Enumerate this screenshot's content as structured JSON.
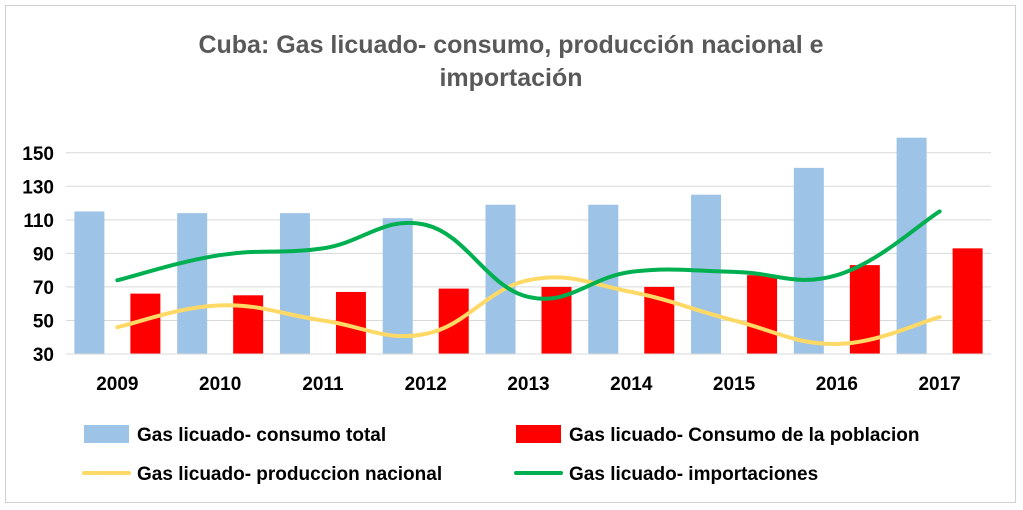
{
  "chart_data": {
    "type": "bar",
    "title_lines": [
      "Cuba: Gas licuado- consumo, producción nacional e",
      "importación"
    ],
    "categories": [
      "2009",
      "2010",
      "2011",
      "2012",
      "2013",
      "2014",
      "2015",
      "2016",
      "2017"
    ],
    "ylim": [
      30,
      160
    ],
    "yticks": [
      30,
      50,
      70,
      90,
      110,
      130,
      150
    ],
    "grid": true,
    "legend_position": "bottom",
    "series": [
      {
        "name": "Gas licuado- consumo total",
        "kind": "bar",
        "color": "#9dc3e6",
        "values": [
          115,
          114,
          114,
          111,
          119,
          119,
          125,
          141,
          159
        ]
      },
      {
        "name": "Gas licuado- Consumo de la poblacion",
        "kind": "bar",
        "color": "#ff0000",
        "values": [
          66,
          65,
          67,
          69,
          70,
          70,
          77,
          83,
          93
        ]
      },
      {
        "name": "Gas licuado- produccion nacional",
        "kind": "line",
        "color": "#ffd966",
        "values": [
          46,
          59,
          50,
          42,
          74,
          67,
          50,
          36,
          52
        ]
      },
      {
        "name": "Gas licuado- importaciones",
        "kind": "line",
        "color": "#00b050",
        "values": [
          74,
          89,
          93,
          107,
          64,
          79,
          79,
          77,
          115
        ]
      }
    ]
  }
}
